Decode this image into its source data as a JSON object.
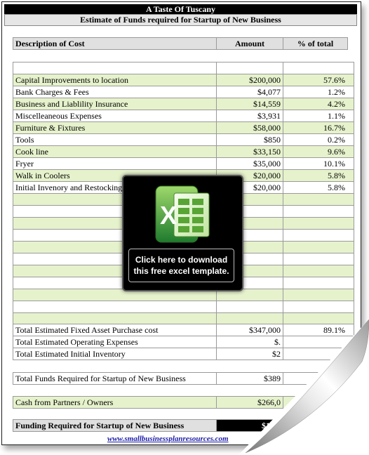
{
  "header": {
    "title": "A Taste Of Tuscany",
    "subtitle": "Estimate of Funds required for Startup of New Business"
  },
  "table": {
    "columns": [
      "Description of Cost",
      "Amount",
      "% of total"
    ],
    "rows": [
      {
        "desc": "Capital Improvements to location",
        "amount": "$200,000",
        "pct": "57.6%"
      },
      {
        "desc": "Bank Charges & Fees",
        "amount": "$4,077",
        "pct": "1.2%"
      },
      {
        "desc": "Business and Liablility Insurance",
        "amount": "$14,559",
        "pct": "4.2%"
      },
      {
        "desc": "Miscelleaneous Expenses",
        "amount": "$3,931",
        "pct": "1.1%"
      },
      {
        "desc": "Furniture & Fixtures",
        "amount": "$58,000",
        "pct": "16.7%"
      },
      {
        "desc": "Tools",
        "amount": "$850",
        "pct": "0.2%"
      },
      {
        "desc": "Cook line",
        "amount": "$33,150",
        "pct": "9.6%"
      },
      {
        "desc": "Fryer",
        "amount": "$35,000",
        "pct": "10.1%"
      },
      {
        "desc": "Walk in Coolers",
        "amount": "$20,000",
        "pct": "5.8%"
      },
      {
        "desc": "Initial Invenory and Restocking",
        "amount": "$20,000",
        "pct": "5.8%"
      }
    ],
    "empty_rows": 11
  },
  "totals": {
    "fixed_label": "Total Estimated Fixed Asset Purchase cost",
    "fixed_amount": "$347,000",
    "fixed_pct": "89.1%",
    "operating_label": "Total Estimated Operating Expenses",
    "operating_amount": "$.",
    "inventory_label": "Total Estimated Initial Inventory",
    "inventory_amount": "$2",
    "funds_label": "Total Funds Required for Startup of New Business",
    "funds_amount": "$389",
    "cash_label": "Cash from Partners / Owners",
    "cash_amount": "$266,0",
    "funding_label": "Funding Required for Startup of New Business",
    "funding_amount": "$123,"
  },
  "promo": {
    "line1": "Click here to download",
    "line2": "this free excel template.",
    "icon": "excel-icon"
  },
  "footer": {
    "link": "www.smallbusinessplanresources.com"
  },
  "colors": {
    "green_row": "#e6f2cc",
    "header_bg": "#e0e0e0",
    "title_bg": "#000000",
    "excel_green": "#1e7b2e"
  }
}
